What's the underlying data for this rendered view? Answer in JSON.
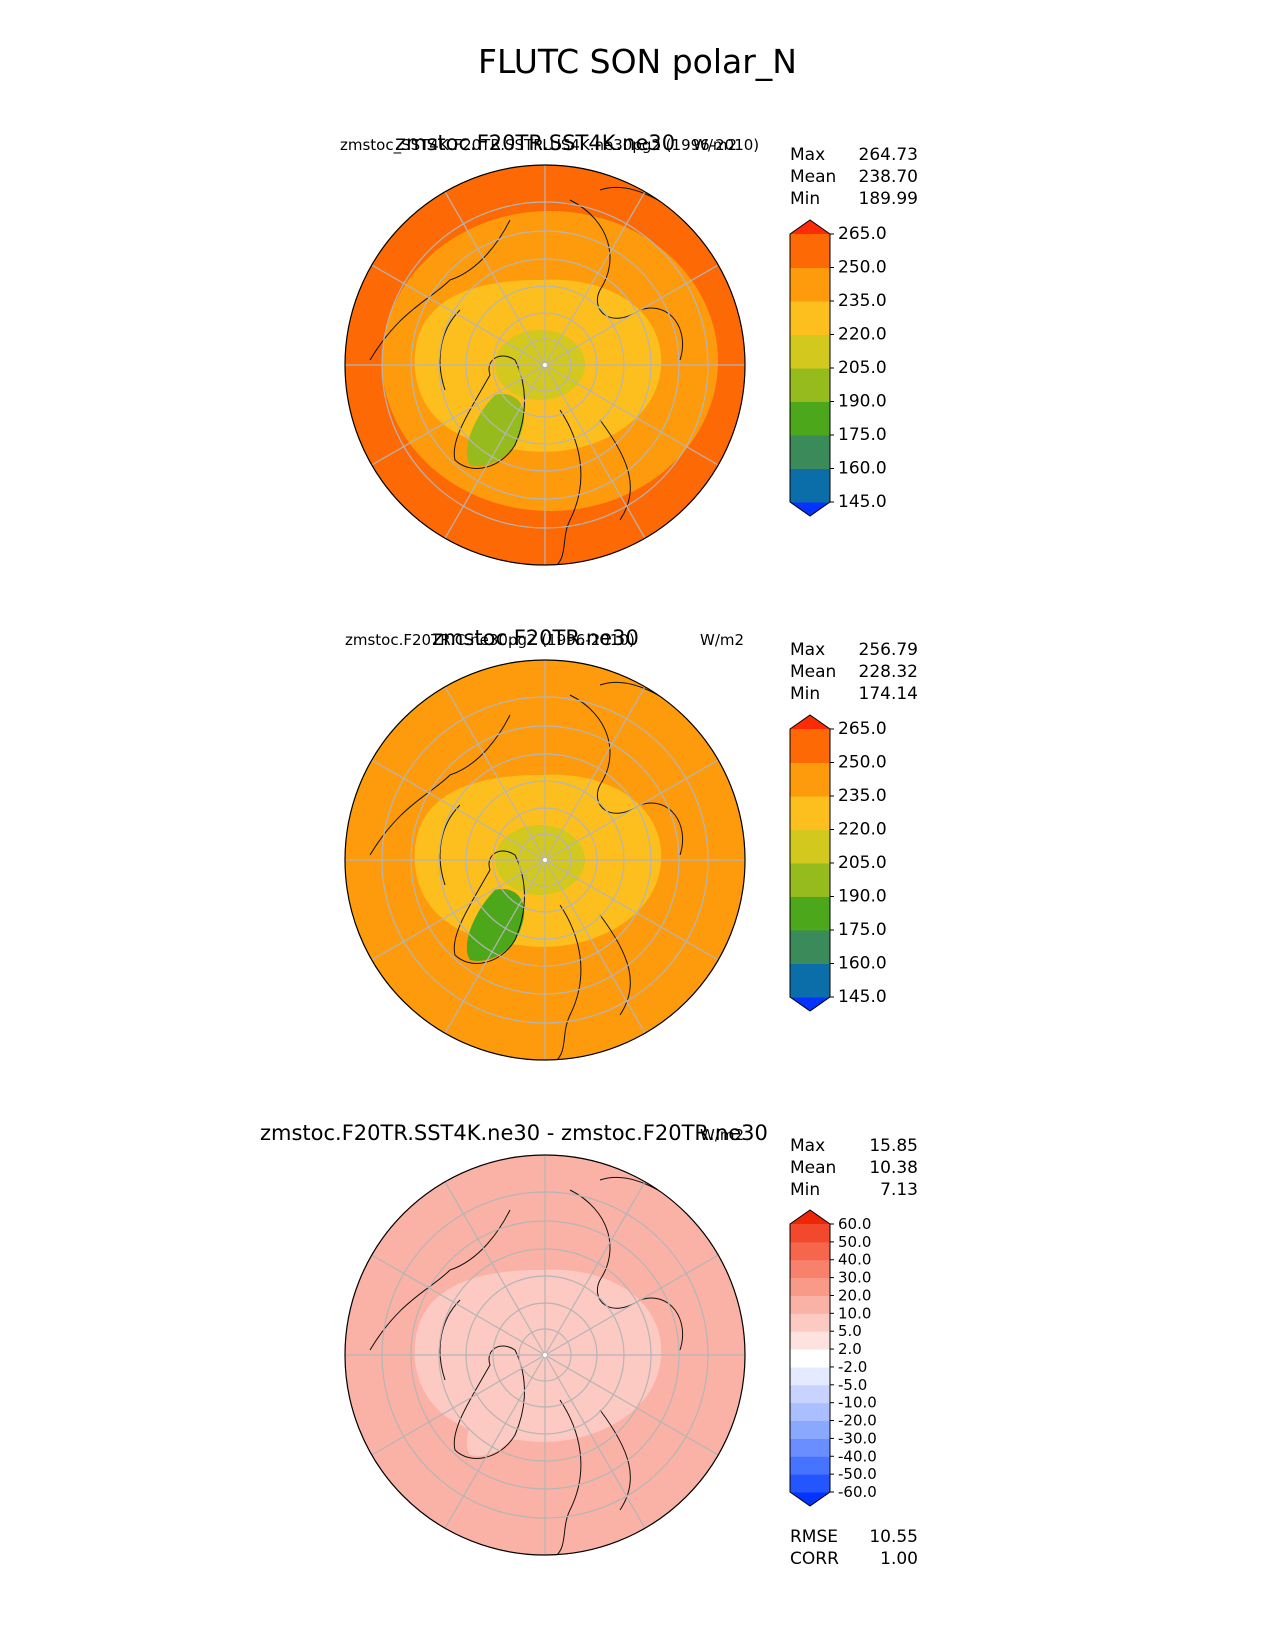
{
  "main_title": "FLUTC SON polar_N",
  "panels": [
    {
      "left_title": "zmstoc_SST4K.F20TR.SSTPLUS4K.ne30pg2 (1996-2010)",
      "center_title": "zmstoc.F20TR.SST4K.ne30",
      "units": "W/m2",
      "stats": {
        "max_label": "Max",
        "max": "264.73",
        "mean_label": "Mean",
        "mean": "238.70",
        "min_label": "Min",
        "min": "189.99"
      }
    },
    {
      "left_title": "zmstoc.F20TR.C.ne30pg2 (1996-2010)",
      "center_title": "zmstoc.F20TR.ne30",
      "units": "W/m2",
      "stats": {
        "max_label": "Max",
        "max": "256.79",
        "mean_label": "Mean",
        "mean": "228.32",
        "min_label": "Min",
        "min": "174.14"
      }
    },
    {
      "center_title": "zmstoc.F20TR.SST4K.ne30 - zmstoc.F20TR.ne30",
      "units": "W/m2",
      "stats": {
        "max_label": "Max",
        "max": "15.85",
        "mean_label": "Mean",
        "mean": "10.38",
        "min_label": "Min",
        "min": "7.13"
      },
      "metrics": {
        "rmse_label": "RMSE",
        "rmse": "10.55",
        "corr_label": "CORR",
        "corr": "1.00"
      }
    }
  ],
  "chart_data": [
    {
      "type": "heatmap",
      "projection": "north polar stereographic",
      "title": "zmstoc.F20TR.SST4K.ne30",
      "colorbar": {
        "ticks": [
          "265.0",
          "250.0",
          "235.0",
          "220.0",
          "205.0",
          "190.0",
          "175.0",
          "160.0",
          "145.0"
        ],
        "levels": [
          145,
          160,
          175,
          190,
          205,
          220,
          235,
          250,
          265
        ],
        "colors": [
          "#0433ff",
          "#0b6ea8",
          "#3a8a5a",
          "#4ca81a",
          "#95bc1c",
          "#d2c81e",
          "#fcbf1e",
          "#fd9b0d",
          "#fd6a05",
          "#fe2c06"
        ],
        "extend": "both"
      },
      "field_levels": {
        "outer_ring": 250,
        "mid_ring": 235,
        "inner_ring": 220,
        "greenland": 190,
        "pole": 205
      }
    },
    {
      "type": "heatmap",
      "projection": "north polar stereographic",
      "title": "zmstoc.F20TR.ne30",
      "colorbar": {
        "ticks": [
          "265.0",
          "250.0",
          "235.0",
          "220.0",
          "205.0",
          "190.0",
          "175.0",
          "160.0",
          "145.0"
        ],
        "levels": [
          145,
          160,
          175,
          190,
          205,
          220,
          235,
          250,
          265
        ],
        "colors": [
          "#0433ff",
          "#0b6ea8",
          "#3a8a5a",
          "#4ca81a",
          "#95bc1c",
          "#d2c81e",
          "#fcbf1e",
          "#fd9b0d",
          "#fd6a05",
          "#fe2c06"
        ],
        "extend": "both"
      },
      "field_levels": {
        "outer_ring": 235,
        "mid_ring": 235,
        "inner_ring": 220,
        "greenland": 175,
        "pole": 205
      }
    },
    {
      "type": "heatmap",
      "projection": "north polar stereographic",
      "title": "zmstoc.F20TR.SST4K.ne30 - zmstoc.F20TR.ne30",
      "colorbar": {
        "ticks": [
          "60.0",
          "50.0",
          "40.0",
          "30.0",
          "20.0",
          "10.0",
          "5.0",
          "2.0",
          "-2.0",
          "-5.0",
          "-10.0",
          "-20.0",
          "-30.0",
          "-40.0",
          "-50.0",
          "-60.0"
        ],
        "levels": [
          -60,
          -50,
          -40,
          -30,
          -20,
          -10,
          -5,
          -2,
          2,
          5,
          10,
          20,
          30,
          40,
          50,
          60
        ],
        "colors": [
          "#0433ff",
          "#2456ff",
          "#4673ff",
          "#6a8eff",
          "#8ba8ff",
          "#aabfff",
          "#c8d4ff",
          "#e4eaff",
          "#ffffff",
          "#fde2df",
          "#fccac3",
          "#fbb2a6",
          "#f99a88",
          "#f7816b",
          "#f5664c",
          "#f2482c",
          "#ee2608"
        ],
        "extend": "both"
      },
      "field_levels": {
        "outer_ring": 10,
        "mid_ring": 10,
        "inner_ring": 5,
        "greenland": 5,
        "pole": 5
      }
    }
  ]
}
